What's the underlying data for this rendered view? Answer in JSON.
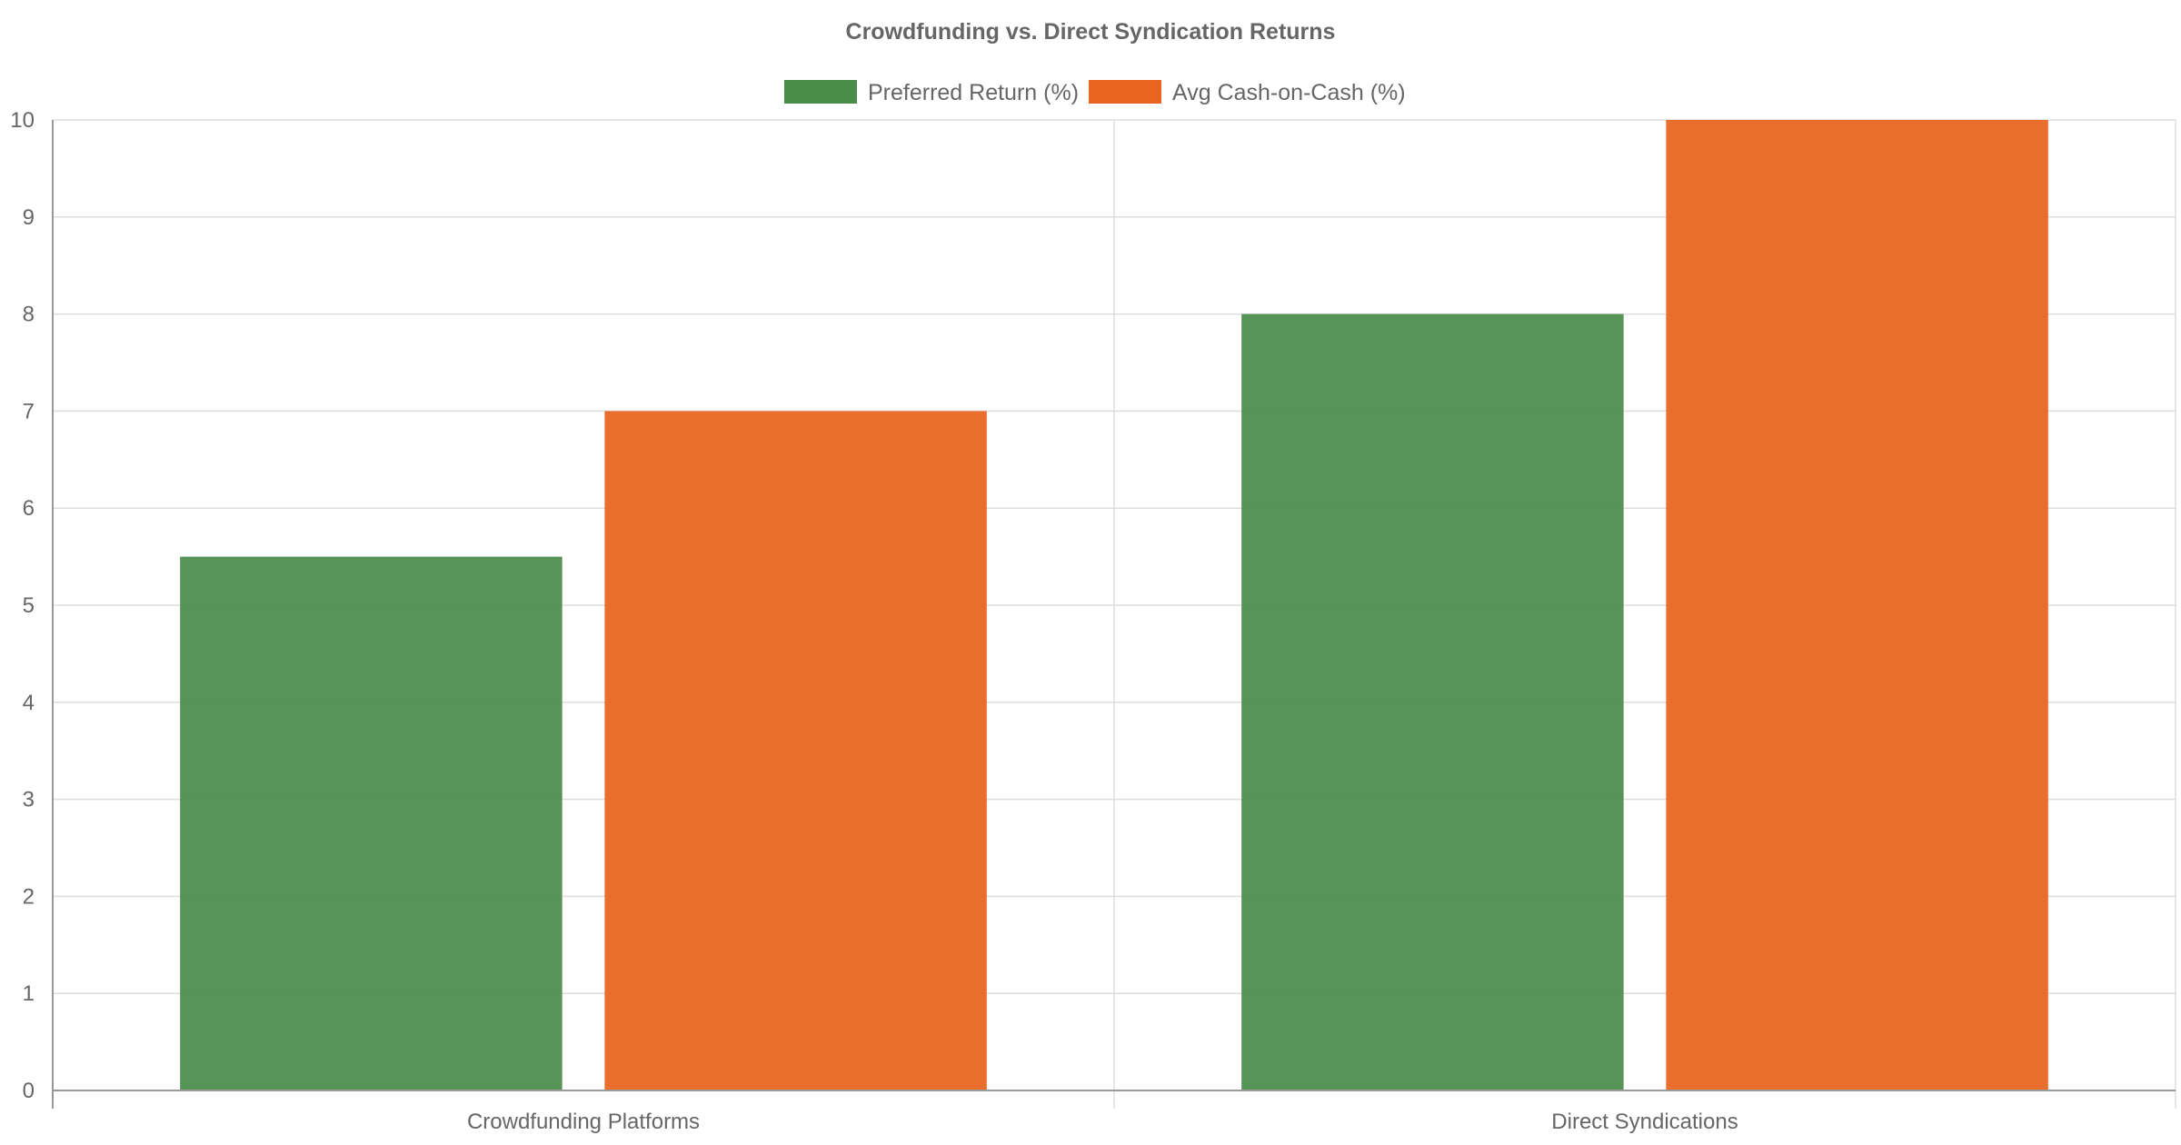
{
  "chart_data": {
    "type": "bar",
    "title": "Crowdfunding vs. Direct Syndication Returns",
    "categories": [
      "Crowdfunding Platforms",
      "Direct Syndications"
    ],
    "series": [
      {
        "name": "Preferred Return (%)",
        "values": [
          5.5,
          8
        ],
        "color": "#4a8c4a"
      },
      {
        "name": "Avg Cash-on-Cash (%)",
        "values": [
          7,
          10
        ],
        "color": "#e8641f"
      }
    ],
    "xlabel": "",
    "ylabel": "",
    "ylim": [
      0,
      10
    ],
    "yticks": [
      "0",
      "1",
      "2",
      "3",
      "4",
      "5",
      "6",
      "7",
      "8",
      "9",
      "10"
    ],
    "grid": true,
    "legend_position": "top"
  }
}
